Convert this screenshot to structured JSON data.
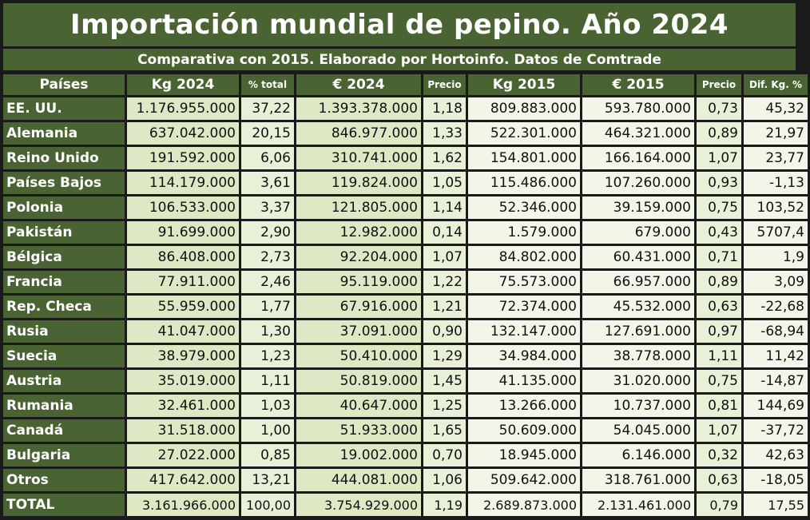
{
  "chart_data": {
    "type": "table",
    "title": "Importación mundial de pepino. Año 2024",
    "subtitle": "Comparativa con 2015. Elaborado por Hortoinfo. Datos de Comtrade",
    "columns": [
      "Países",
      "Kg 2024",
      "% total",
      "€ 2024",
      "Precio",
      "Kg 2015",
      "€ 2015",
      "Precio",
      "Dif. Kg. %"
    ],
    "rows": [
      [
        "EE. UU.",
        "1.176.955.000",
        "37,22",
        "1.393.378.000",
        "1,18",
        "809.883.000",
        "593.780.000",
        "0,73",
        "45,32"
      ],
      [
        "Alemania",
        "637.042.000",
        "20,15",
        "846.977.000",
        "1,33",
        "522.301.000",
        "464.321.000",
        "0,89",
        "21,97"
      ],
      [
        "Reino Unido",
        "191.592.000",
        "6,06",
        "310.741.000",
        "1,62",
        "154.801.000",
        "166.164.000",
        "1,07",
        "23,77"
      ],
      [
        "Países Bajos",
        "114.179.000",
        "3,61",
        "119.824.000",
        "1,05",
        "115.486.000",
        "107.260.000",
        "0,93",
        "-1,13"
      ],
      [
        "Polonia",
        "106.533.000",
        "3,37",
        "121.805.000",
        "1,14",
        "52.346.000",
        "39.159.000",
        "0,75",
        "103,52"
      ],
      [
        "Pakistán",
        "91.699.000",
        "2,90",
        "12.982.000",
        "0,14",
        "1.579.000",
        "679.000",
        "0,43",
        "5707,4"
      ],
      [
        "Bélgica",
        "86.408.000",
        "2,73",
        "92.204.000",
        "1,07",
        "84.802.000",
        "60.431.000",
        "0,71",
        "1,9"
      ],
      [
        "Francia",
        "77.911.000",
        "2,46",
        "95.119.000",
        "1,22",
        "75.573.000",
        "66.957.000",
        "0,89",
        "3,09"
      ],
      [
        "Rep. Checa",
        "55.959.000",
        "1,77",
        "67.916.000",
        "1,21",
        "72.374.000",
        "45.532.000",
        "0,63",
        "-22,68"
      ],
      [
        "Rusia",
        "41.047.000",
        "1,30",
        "37.091.000",
        "0,90",
        "132.147.000",
        "127.691.000",
        "0,97",
        "-68,94"
      ],
      [
        "Suecia",
        "38.979.000",
        "1,23",
        "50.410.000",
        "1,29",
        "34.984.000",
        "38.778.000",
        "1,11",
        "11,42"
      ],
      [
        "Austria",
        "35.019.000",
        "1,11",
        "50.819.000",
        "1,45",
        "41.135.000",
        "31.020.000",
        "0,75",
        "-14,87"
      ],
      [
        "Rumania",
        "32.461.000",
        "1,03",
        "40.647.000",
        "1,25",
        "13.266.000",
        "10.737.000",
        "0,81",
        "144,69"
      ],
      [
        "Canadá",
        "31.518.000",
        "1,00",
        "51.933.000",
        "1,65",
        "50.609.000",
        "54.045.000",
        "1,07",
        "-37,72"
      ],
      [
        "Bulgaria",
        "27.022.000",
        "0,85",
        "19.002.000",
        "0,70",
        "18.945.000",
        "6.146.000",
        "0,32",
        "42,63"
      ],
      [
        "Otros",
        "417.642.000",
        "13,21",
        "444.081.000",
        "1,06",
        "509.642.000",
        "318.761.000",
        "0,63",
        "-18,05"
      ],
      [
        "TOTAL",
        "3.161.966.000",
        "100,00",
        "3.754.929.000",
        "1,19",
        "2.689.873.000",
        "2.131.461.000",
        "0,79",
        "17,55"
      ]
    ]
  },
  "colors": {
    "header_green": "#4a6332",
    "frame_dark": "#1a1a1a",
    "cell_light_1": "#dce9c4",
    "cell_light_2": "#e8f0d8",
    "cell_light_3": "#f1f6e8"
  }
}
